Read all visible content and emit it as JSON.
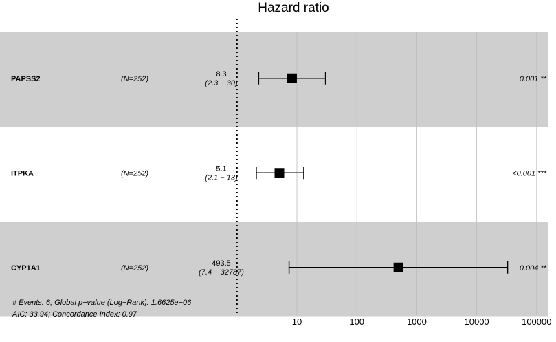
{
  "chart_data": {
    "type": "forest",
    "title": "Hazard ratio",
    "x_scale": "log10",
    "x_ticks": [
      10,
      100,
      1000,
      10000,
      100000
    ],
    "x_tick_labels": [
      "10",
      "100",
      "1000",
      "10000",
      "100000"
    ],
    "reference_line": 1,
    "rows": [
      {
        "name": "PAPSS2",
        "n_label": "(N=252)",
        "hr": 8.3,
        "hr_label": "8.3",
        "ci_low": 2.3,
        "ci_high": 30,
        "ci_label": "(2.3 − 30)",
        "p_label": "0.001 **",
        "shaded": true
      },
      {
        "name": "ITPKA",
        "n_label": "(N=252)",
        "hr": 5.1,
        "hr_label": "5.1",
        "ci_low": 2.1,
        "ci_high": 13,
        "ci_label": "(2.1 − 13)",
        "p_label": "<0.001 ***",
        "shaded": false
      },
      {
        "name": "CYP1A1",
        "n_label": "(N=252)",
        "hr": 493.5,
        "hr_label": "493.5",
        "ci_low": 7.4,
        "ci_high": 32787,
        "ci_label": "(7.4 − 32787)",
        "p_label": "0.004 **",
        "shaded": true
      }
    ],
    "footnotes": [
      "# Events: 6; Global p−value (Log−Rank): 1.6625e−06",
      "AIC: 33.94; Concordance Index: 0.97"
    ],
    "colors": {
      "band": "#cfcfcf",
      "grid": "#bdbdbd",
      "marker": "#000000"
    }
  }
}
